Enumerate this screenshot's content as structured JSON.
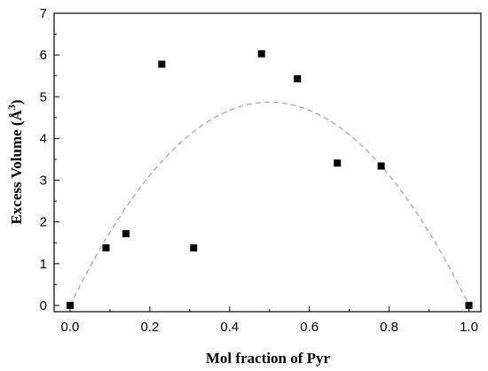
{
  "chart_data": {
    "type": "scatter",
    "title": "",
    "xlabel": "Mol fraction of Pyr",
    "ylabel_main": "Excess Volume (",
    "ylabel_unit": "Å",
    "ylabel_sup": "3",
    "ylabel_close": ")",
    "xlim": [
      -0.04,
      1.03
    ],
    "ylim": [
      -0.15,
      7
    ],
    "x_ticks": [
      0.0,
      0.2,
      0.4,
      0.6,
      0.8,
      1.0
    ],
    "x_tick_labels": [
      "0.0",
      "0.2",
      "0.4",
      "0.6",
      "0.8",
      "1.0"
    ],
    "y_ticks": [
      0,
      1,
      2,
      3,
      4,
      5,
      6,
      7
    ],
    "y_tick_labels": [
      "0",
      "1",
      "2",
      "3",
      "4",
      "5",
      "6",
      "7"
    ],
    "grid": false,
    "legend": "none",
    "series": [
      {
        "marker": "square",
        "color": "#000000",
        "points": [
          {
            "x": 0.0,
            "y": 0.0
          },
          {
            "x": 0.09,
            "y": 1.38
          },
          {
            "x": 0.14,
            "y": 1.72
          },
          {
            "x": 0.23,
            "y": 5.78
          },
          {
            "x": 0.31,
            "y": 1.38
          },
          {
            "x": 0.48,
            "y": 6.03
          },
          {
            "x": 0.57,
            "y": 5.43
          },
          {
            "x": 0.67,
            "y": 3.41
          },
          {
            "x": 0.78,
            "y": 3.34
          },
          {
            "x": 1.0,
            "y": 0.0
          }
        ]
      },
      {
        "type": "line",
        "style": "dashed",
        "color": "#a8a8a8",
        "fit": "parabola",
        "peak_x": 0.5,
        "peak_y": 4.87,
        "x_range": [
          0.0,
          1.0
        ]
      }
    ]
  }
}
